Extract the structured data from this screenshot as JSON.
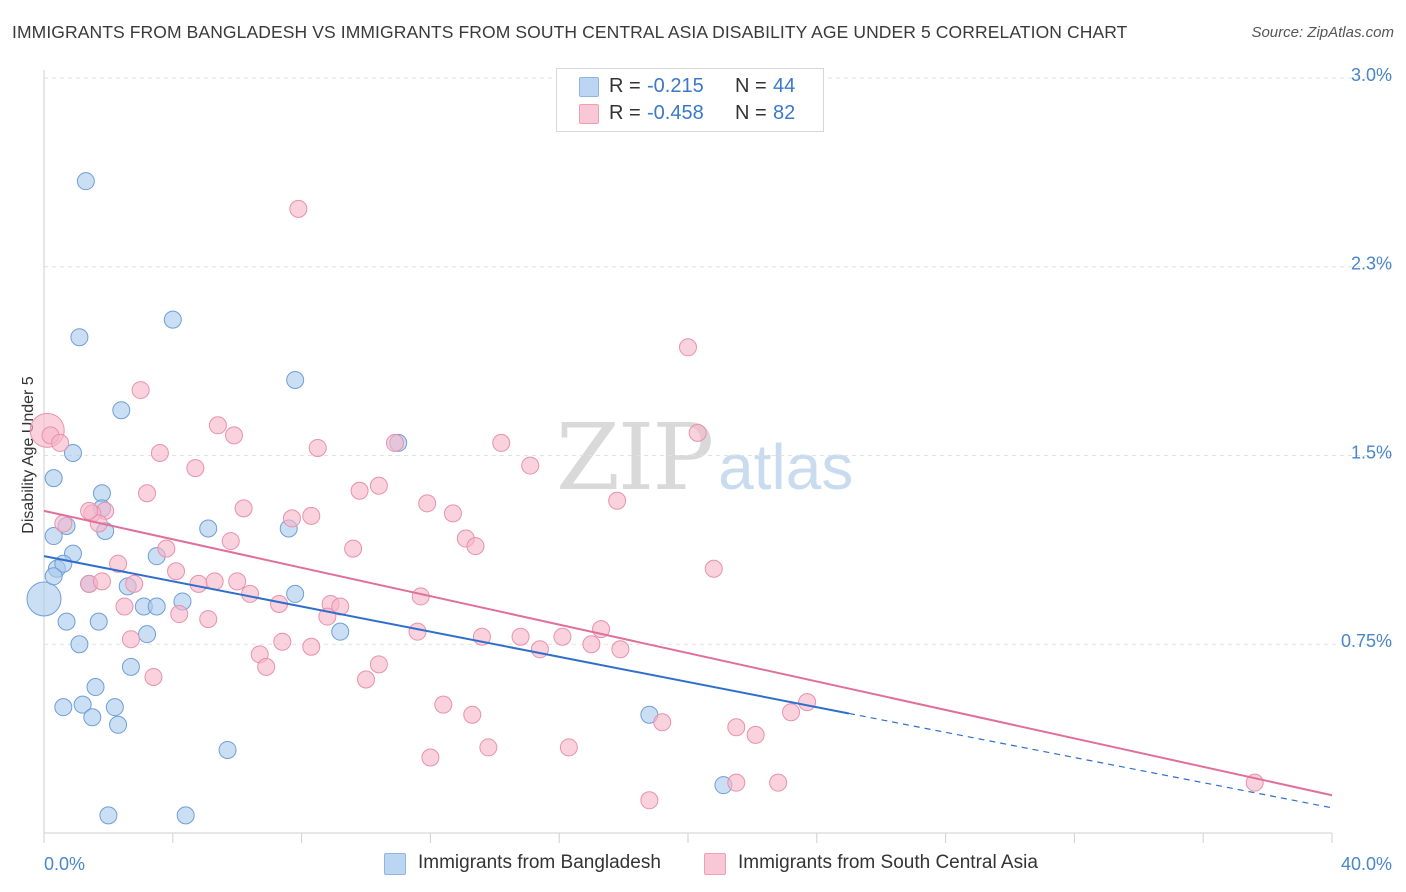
{
  "title": "IMMIGRANTS FROM BANGLADESH VS IMMIGRANTS FROM SOUTH CENTRAL ASIA DISABILITY AGE UNDER 5 CORRELATION CHART",
  "source": "Source: ZipAtlas.com",
  "watermark": {
    "zip": "ZIP",
    "atlas": "atlas"
  },
  "legend": {
    "r_label": "R =",
    "n_label": "N =",
    "rows": [
      {
        "r": "-0.215",
        "n": "44",
        "color": "#a9c9ee"
      },
      {
        "r": "-0.458",
        "n": "82",
        "color": "#f6b6c9"
      }
    ]
  },
  "bottom_legend": [
    "Immigrants from Bangladesh",
    "Immigrants from South Central Asia"
  ],
  "chart_data": {
    "type": "scatter",
    "title": "IMMIGRANTS FROM BANGLADESH VS IMMIGRANTS FROM SOUTH CENTRAL ASIA DISABILITY AGE UNDER 5 CORRELATION CHART",
    "xlabel": "",
    "ylabel": "Disability Age Under 5",
    "xlim": [
      0,
      40
    ],
    "ylim": [
      0,
      3.0
    ],
    "x_tick_labels": [
      "0.0%",
      "40.0%"
    ],
    "y_ticks": [
      0.75,
      1.5,
      2.25,
      3.0
    ],
    "y_tick_labels": [
      "0.75%",
      "1.5%",
      "2.3%",
      "3.0%"
    ],
    "grid": true,
    "series": [
      {
        "name": "Immigrants from Bangladesh",
        "color": "#a9c9ee",
        "stroke": "#6f9fd6",
        "trend_color": "#2f6fcc",
        "trend": {
          "x0": 0,
          "y0": 1.1,
          "x_solid_end": 25,
          "x1": 40,
          "y1": 0.1
        },
        "points": [
          [
            0.0,
            0.93
          ],
          [
            1.3,
            2.59
          ],
          [
            1.1,
            1.97
          ],
          [
            4.0,
            2.04
          ],
          [
            7.8,
            1.8
          ],
          [
            2.4,
            1.68
          ],
          [
            11.0,
            1.55
          ],
          [
            0.3,
            1.41
          ],
          [
            0.9,
            1.51
          ],
          [
            1.8,
            1.35
          ],
          [
            1.8,
            1.29
          ],
          [
            0.3,
            1.18
          ],
          [
            0.7,
            1.22
          ],
          [
            0.9,
            1.11
          ],
          [
            1.9,
            1.2
          ],
          [
            0.4,
            1.05
          ],
          [
            0.6,
            1.07
          ],
          [
            0.3,
            1.02
          ],
          [
            1.4,
            0.99
          ],
          [
            2.6,
            0.98
          ],
          [
            3.5,
            1.1
          ],
          [
            5.1,
            1.21
          ],
          [
            7.6,
            1.21
          ],
          [
            7.8,
            0.95
          ],
          [
            3.1,
            0.9
          ],
          [
            3.5,
            0.9
          ],
          [
            4.3,
            0.92
          ],
          [
            0.7,
            0.84
          ],
          [
            1.7,
            0.84
          ],
          [
            3.2,
            0.79
          ],
          [
            9.2,
            0.8
          ],
          [
            1.1,
            0.75
          ],
          [
            2.7,
            0.66
          ],
          [
            1.6,
            0.58
          ],
          [
            1.2,
            0.51
          ],
          [
            2.2,
            0.5
          ],
          [
            1.5,
            0.46
          ],
          [
            2.3,
            0.43
          ],
          [
            5.7,
            0.33
          ],
          [
            18.8,
            0.47
          ],
          [
            21.1,
            0.19
          ],
          [
            2.0,
            0.07
          ],
          [
            4.4,
            0.07
          ],
          [
            0.6,
            0.5
          ]
        ]
      },
      {
        "name": "Immigrants from South Central Asia",
        "color": "#f6b6c9",
        "stroke": "#e991ad",
        "trend_color": "#e0709a",
        "trend": {
          "x0": 0,
          "y0": 1.28,
          "x1": 40,
          "y1": 0.15
        },
        "points": [
          [
            0.1,
            1.6
          ],
          [
            0.2,
            1.58
          ],
          [
            0.5,
            1.55
          ],
          [
            7.9,
            2.48
          ],
          [
            20.0,
            1.93
          ],
          [
            3.0,
            1.76
          ],
          [
            5.4,
            1.62
          ],
          [
            5.9,
            1.58
          ],
          [
            20.3,
            1.59
          ],
          [
            10.9,
            1.55
          ],
          [
            14.2,
            1.55
          ],
          [
            8.5,
            1.53
          ],
          [
            3.6,
            1.51
          ],
          [
            15.1,
            1.46
          ],
          [
            4.7,
            1.45
          ],
          [
            10.4,
            1.38
          ],
          [
            9.8,
            1.36
          ],
          [
            3.2,
            1.35
          ],
          [
            11.9,
            1.31
          ],
          [
            17.8,
            1.32
          ],
          [
            1.9,
            1.28
          ],
          [
            6.2,
            1.29
          ],
          [
            1.5,
            1.27
          ],
          [
            7.7,
            1.25
          ],
          [
            8.3,
            1.26
          ],
          [
            12.7,
            1.27
          ],
          [
            1.7,
            1.23
          ],
          [
            5.8,
            1.16
          ],
          [
            13.1,
            1.17
          ],
          [
            13.4,
            1.14
          ],
          [
            9.6,
            1.13
          ],
          [
            3.8,
            1.13
          ],
          [
            2.3,
            1.07
          ],
          [
            4.1,
            1.04
          ],
          [
            20.8,
            1.05
          ],
          [
            1.4,
            0.99
          ],
          [
            2.8,
            0.99
          ],
          [
            4.8,
            0.99
          ],
          [
            5.3,
            1.0
          ],
          [
            6.0,
            1.0
          ],
          [
            1.8,
            1.0
          ],
          [
            6.4,
            0.95
          ],
          [
            11.7,
            0.94
          ],
          [
            2.5,
            0.9
          ],
          [
            7.3,
            0.91
          ],
          [
            8.9,
            0.91
          ],
          [
            9.2,
            0.9
          ],
          [
            4.2,
            0.87
          ],
          [
            5.1,
            0.85
          ],
          [
            8.8,
            0.86
          ],
          [
            17.3,
            0.81
          ],
          [
            11.6,
            0.8
          ],
          [
            2.7,
            0.77
          ],
          [
            7.4,
            0.76
          ],
          [
            8.3,
            0.74
          ],
          [
            13.6,
            0.78
          ],
          [
            14.8,
            0.78
          ],
          [
            16.1,
            0.78
          ],
          [
            17.0,
            0.75
          ],
          [
            15.4,
            0.73
          ],
          [
            17.9,
            0.73
          ],
          [
            6.7,
            0.71
          ],
          [
            6.9,
            0.66
          ],
          [
            10.4,
            0.67
          ],
          [
            3.4,
            0.62
          ],
          [
            10.0,
            0.61
          ],
          [
            12.4,
            0.51
          ],
          [
            13.3,
            0.47
          ],
          [
            19.2,
            0.44
          ],
          [
            21.5,
            0.42
          ],
          [
            22.1,
            0.39
          ],
          [
            23.2,
            0.48
          ],
          [
            23.7,
            0.52
          ],
          [
            13.8,
            0.34
          ],
          [
            16.3,
            0.34
          ],
          [
            12.0,
            0.3
          ],
          [
            18.8,
            0.13
          ],
          [
            21.5,
            0.2
          ],
          [
            22.8,
            0.2
          ],
          [
            37.6,
            0.2
          ],
          [
            0.6,
            1.23
          ],
          [
            1.4,
            1.28
          ]
        ]
      }
    ]
  }
}
